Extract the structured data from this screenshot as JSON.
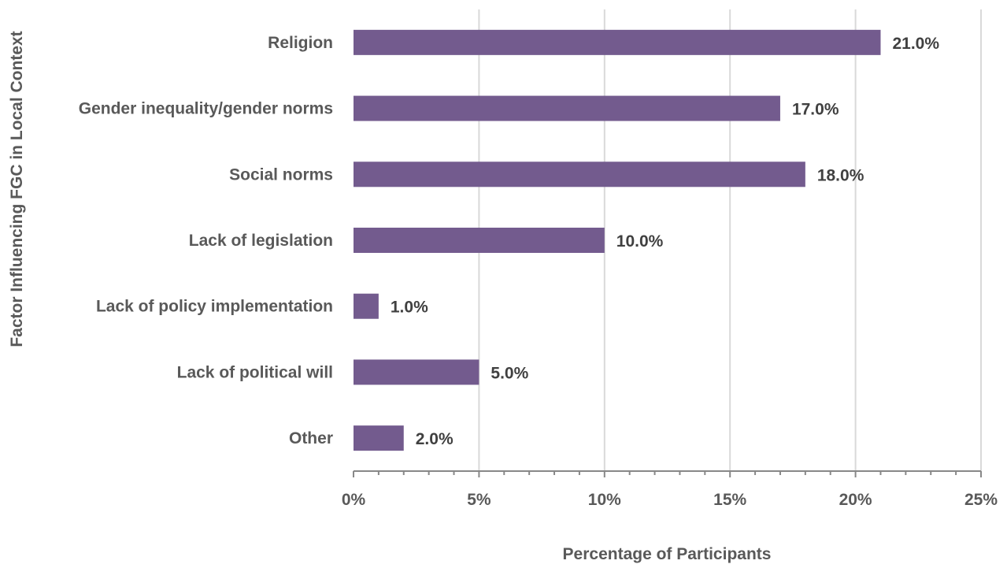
{
  "chart_data": {
    "type": "bar",
    "orientation": "horizontal",
    "categories": [
      "Religion",
      "Gender inequality/gender norms",
      "Social norms",
      "Lack of legislation",
      "Lack of policy implementation",
      "Lack of political will",
      "Other"
    ],
    "values": [
      21.0,
      17.0,
      18.0,
      10.0,
      1.0,
      5.0,
      2.0
    ],
    "value_labels": [
      "21.0%",
      "17.0%",
      "18.0%",
      "10.0%",
      "1.0%",
      "5.0%",
      "2.0%"
    ],
    "xlabel": "Percentage of Participants",
    "ylabel": "Factor Influencing FGC in Local Context",
    "xlim": [
      0,
      25
    ],
    "x_ticks": [
      0,
      5,
      10,
      15,
      20,
      25
    ],
    "x_tick_labels": [
      "0%",
      "5%",
      "10%",
      "15%",
      "20%",
      "25%"
    ],
    "grid": true,
    "legend": "none",
    "bar_color": "#735b8e"
  }
}
